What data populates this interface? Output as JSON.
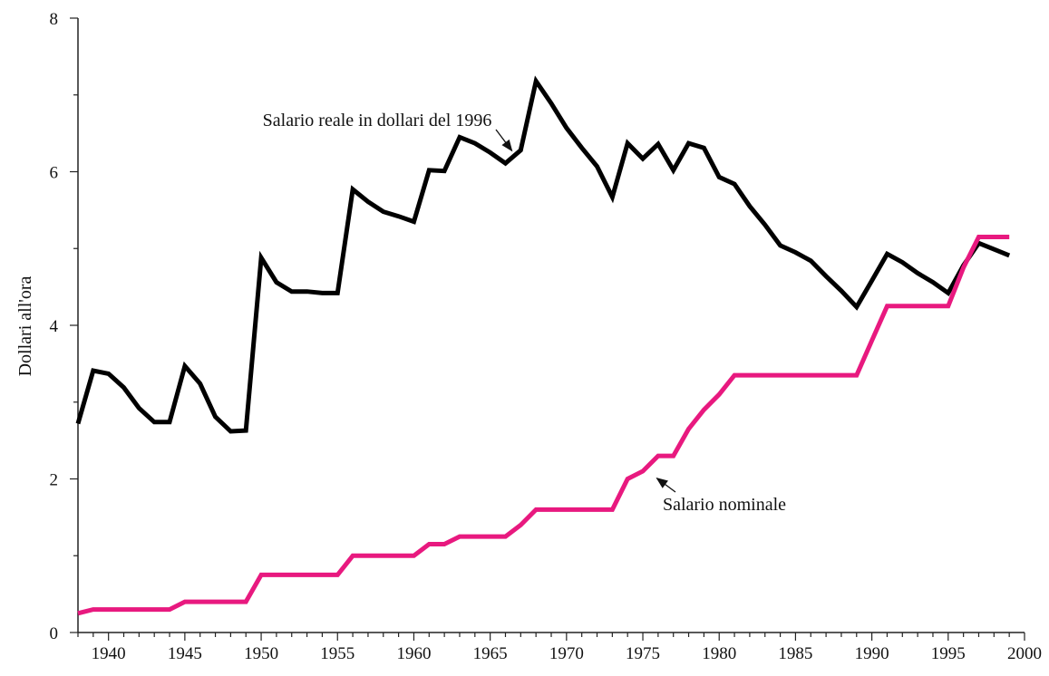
{
  "chart_data": {
    "type": "line",
    "xlabel": "",
    "ylabel": "Dollari all'ora",
    "xlim": [
      1938,
      2000
    ],
    "ylim": [
      0,
      8
    ],
    "x_ticks": [
      1940,
      1945,
      1950,
      1955,
      1960,
      1965,
      1970,
      1975,
      1980,
      1985,
      1990,
      1995,
      2000
    ],
    "y_ticks": [
      0,
      2,
      4,
      6,
      8
    ],
    "grid": false,
    "legend": "none",
    "series": [
      {
        "name": "Salario reale in dollari del 1996",
        "color": "#000000",
        "x": [
          1938,
          1939,
          1940,
          1941,
          1942,
          1943,
          1944,
          1945,
          1946,
          1947,
          1948,
          1949,
          1950,
          1951,
          1952,
          1953,
          1954,
          1955,
          1956,
          1957,
          1958,
          1959,
          1960,
          1961,
          1962,
          1963,
          1964,
          1965,
          1966,
          1967,
          1968,
          1969,
          1970,
          1971,
          1972,
          1973,
          1974,
          1975,
          1976,
          1977,
          1978,
          1979,
          1980,
          1981,
          1982,
          1983,
          1984,
          1985,
          1986,
          1987,
          1988,
          1989,
          1990,
          1991,
          1992,
          1993,
          1994,
          1995,
          1996,
          1997,
          1998,
          1999
        ],
        "values": [
          2.72,
          3.41,
          3.37,
          3.19,
          2.92,
          2.74,
          2.74,
          3.47,
          3.24,
          2.81,
          2.62,
          2.63,
          4.88,
          4.56,
          4.44,
          4.44,
          4.42,
          4.42,
          5.77,
          5.61,
          5.48,
          5.42,
          5.35,
          6.02,
          6.01,
          6.45,
          6.37,
          6.25,
          6.11,
          6.28,
          7.18,
          6.89,
          6.57,
          6.31,
          6.07,
          5.67,
          6.37,
          6.17,
          6.36,
          6.02,
          6.37,
          6.31,
          5.93,
          5.84,
          5.55,
          5.31,
          5.04,
          4.95,
          4.84,
          4.64,
          4.45,
          4.24,
          4.58,
          4.93,
          4.82,
          4.68,
          4.56,
          4.42,
          4.78,
          5.07,
          4.99,
          4.91
        ]
      },
      {
        "name": "Salario nominale",
        "color": "#e8197f",
        "x": [
          1938,
          1939,
          1940,
          1941,
          1942,
          1943,
          1944,
          1945,
          1946,
          1947,
          1948,
          1949,
          1950,
          1951,
          1952,
          1953,
          1954,
          1955,
          1956,
          1957,
          1958,
          1959,
          1960,
          1961,
          1962,
          1963,
          1964,
          1965,
          1966,
          1967,
          1968,
          1969,
          1970,
          1971,
          1972,
          1973,
          1974,
          1975,
          1976,
          1977,
          1978,
          1979,
          1980,
          1981,
          1982,
          1983,
          1984,
          1985,
          1986,
          1987,
          1988,
          1989,
          1990,
          1991,
          1992,
          1993,
          1994,
          1995,
          1996,
          1997,
          1998,
          1999
        ],
        "values": [
          0.25,
          0.3,
          0.3,
          0.3,
          0.3,
          0.3,
          0.3,
          0.4,
          0.4,
          0.4,
          0.4,
          0.4,
          0.75,
          0.75,
          0.75,
          0.75,
          0.75,
          0.75,
          1.0,
          1.0,
          1.0,
          1.0,
          1.0,
          1.15,
          1.15,
          1.25,
          1.25,
          1.25,
          1.25,
          1.4,
          1.6,
          1.6,
          1.6,
          1.6,
          1.6,
          1.6,
          2.0,
          2.1,
          2.3,
          2.3,
          2.65,
          2.9,
          3.1,
          3.35,
          3.35,
          3.35,
          3.35,
          3.35,
          3.35,
          3.35,
          3.35,
          3.35,
          3.8,
          4.25,
          4.25,
          4.25,
          4.25,
          4.25,
          4.75,
          5.15,
          5.15,
          5.15
        ]
      }
    ],
    "annotations": [
      {
        "text": "Salario reale in dollari del 1996",
        "series": 0,
        "x": 1966.6,
        "y": 6.25
      },
      {
        "text": "Salario nominale",
        "series": 1,
        "x": 1975.8,
        "y": 2.08
      }
    ]
  }
}
